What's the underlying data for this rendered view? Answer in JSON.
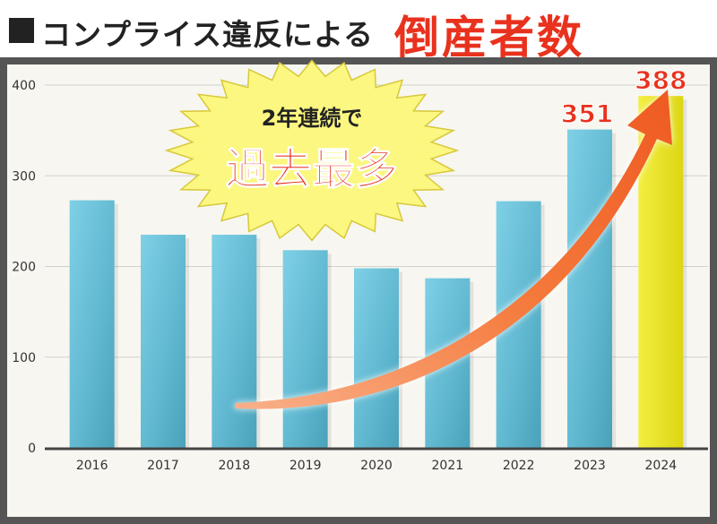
{
  "title": {
    "main": "コンプライス違反による",
    "accent": "倒産者数"
  },
  "badge": {
    "line1": "2年連続で",
    "line2": "過去最多"
  },
  "colors": {
    "bar": "#66bfd6",
    "highlight_bar": "#e8e21a",
    "accent": "#e8321e",
    "arrow": "#f26a2e"
  },
  "chart_data": {
    "type": "bar",
    "categories": [
      "2016",
      "2017",
      "2018",
      "2019",
      "2020",
      "2021",
      "2022",
      "2023",
      "2024"
    ],
    "values": [
      273,
      235,
      235,
      218,
      198,
      187,
      272,
      351,
      388
    ],
    "ylim": [
      0,
      400
    ],
    "yticks": [
      0,
      100,
      200,
      300,
      400
    ],
    "grid": true,
    "highlight_index": 8,
    "data_labels": [
      {
        "index": 7,
        "text": "351"
      },
      {
        "index": 8,
        "text": "388"
      }
    ]
  }
}
